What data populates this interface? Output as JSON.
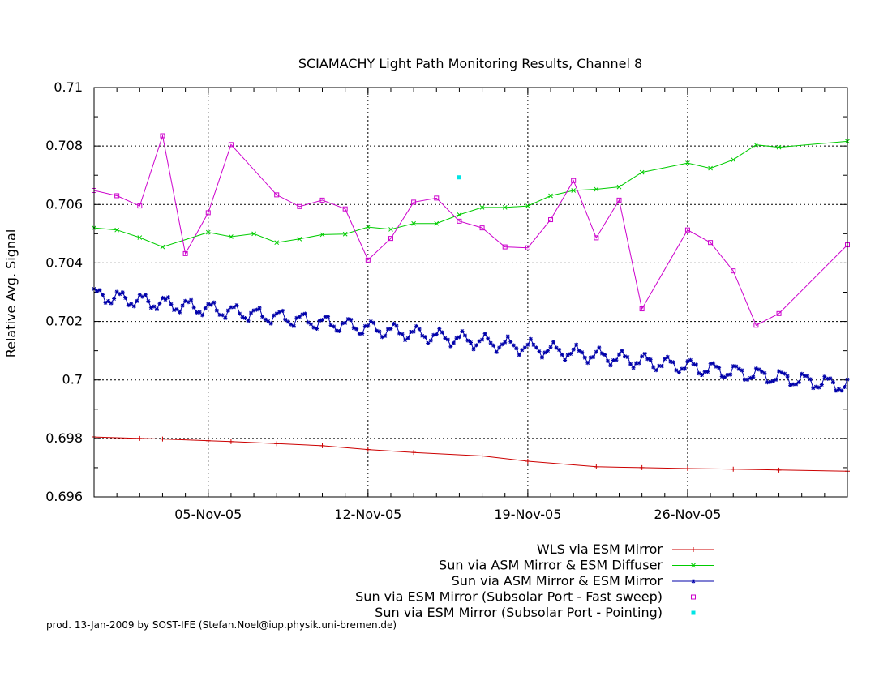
{
  "chart_data": {
    "type": "line",
    "title": "SCIAMACHY Light Path Monitoring Results, Channel 8",
    "xlabel": "",
    "ylabel": "Relative Avg. Signal",
    "x_axis": "date",
    "xlim": [
      "2005-10-31",
      "2005-12-03"
    ],
    "ylim": [
      0.696,
      0.71
    ],
    "y_ticks": [
      {
        "value": 0.696,
        "label": "0.696"
      },
      {
        "value": 0.698,
        "label": "0.698"
      },
      {
        "value": 0.7,
        "label": "0.7"
      },
      {
        "value": 0.702,
        "label": "0.702"
      },
      {
        "value": 0.704,
        "label": "0.704"
      },
      {
        "value": 0.706,
        "label": "0.706"
      },
      {
        "value": 0.708,
        "label": "0.708"
      },
      {
        "value": 0.71,
        "label": "0.71"
      }
    ],
    "x_ticks": [
      {
        "value": "2005-11-05",
        "label": "05-Nov-05"
      },
      {
        "value": "2005-11-12",
        "label": "12-Nov-05"
      },
      {
        "value": "2005-11-19",
        "label": "19-Nov-05"
      },
      {
        "value": "2005-11-26",
        "label": "26-Nov-05"
      }
    ],
    "grid": true,
    "legend_position": "below plot, right-aligned",
    "series": [
      {
        "name": "WLS via ESM Mirror",
        "color": "#cc0000",
        "marker": "plus",
        "points": [
          [
            "2005-10-31",
            0.69805
          ],
          [
            "2005-11-02",
            0.698
          ],
          [
            "2005-11-03",
            0.69798
          ],
          [
            "2005-11-05",
            0.69792
          ],
          [
            "2005-11-06",
            0.69789
          ],
          [
            "2005-11-08",
            0.69782
          ],
          [
            "2005-11-10",
            0.69775
          ],
          [
            "2005-11-12",
            0.69762
          ],
          [
            "2005-11-14",
            0.69752
          ],
          [
            "2005-11-17",
            0.6974
          ],
          [
            "2005-11-19",
            0.69722
          ],
          [
            "2005-11-22",
            0.69703
          ],
          [
            "2005-11-24",
            0.697
          ],
          [
            "2005-11-26",
            0.69697
          ],
          [
            "2005-11-28",
            0.69695
          ],
          [
            "2005-11-30",
            0.69692
          ],
          [
            "2005-12-03",
            0.69688
          ]
        ]
      },
      {
        "name": "Sun via ASM Mirror & ESM Diffuser",
        "color": "#00cc00",
        "marker": "cross",
        "points": [
          [
            "2005-10-31",
            0.7052
          ],
          [
            "2005-11-01",
            0.70513
          ],
          [
            "2005-11-02",
            0.70487
          ],
          [
            "2005-11-03",
            0.70455
          ],
          [
            "2005-11-05",
            0.70505
          ],
          [
            "2005-11-06",
            0.7049
          ],
          [
            "2005-11-07",
            0.705
          ],
          [
            "2005-11-08",
            0.7047
          ],
          [
            "2005-11-09",
            0.70482
          ],
          [
            "2005-11-10",
            0.70497
          ],
          [
            "2005-11-11",
            0.70499
          ],
          [
            "2005-11-12",
            0.70523
          ],
          [
            "2005-11-13",
            0.70515
          ],
          [
            "2005-11-14",
            0.70535
          ],
          [
            "2005-11-15",
            0.70535
          ],
          [
            "2005-11-16",
            0.70565
          ],
          [
            "2005-11-17",
            0.7059
          ],
          [
            "2005-11-18",
            0.7059
          ],
          [
            "2005-11-19",
            0.70595
          ],
          [
            "2005-11-20",
            0.7063
          ],
          [
            "2005-11-21",
            0.70648
          ],
          [
            "2005-11-22",
            0.70652
          ],
          [
            "2005-11-23",
            0.7066
          ],
          [
            "2005-11-24",
            0.7071
          ],
          [
            "2005-11-26",
            0.70742
          ],
          [
            "2005-11-27",
            0.70724
          ],
          [
            "2005-11-28",
            0.70753
          ],
          [
            "2005-11-29",
            0.70804
          ],
          [
            "2005-11-30",
            0.70796
          ],
          [
            "2005-12-03",
            0.70816
          ]
        ]
      },
      {
        "name": "Sun via ASM Mirror & ESM Mirror",
        "color": "#0000aa",
        "marker": "star",
        "trend": {
          "start": [
            "2005-10-31",
            0.7029
          ],
          "end": [
            "2005-12-03",
            0.6998
          ]
        },
        "oscillation": {
          "amplitude": 0.00022,
          "points_per_day": 8,
          "cycle_days": 1.0
        }
      },
      {
        "name": "Sun via ESM Mirror (Subsolar Port - Fast sweep)",
        "color": "#cc00cc",
        "marker": "square",
        "points": [
          [
            "2005-10-31",
            0.70648
          ],
          [
            "2005-11-01",
            0.7063
          ],
          [
            "2005-11-02",
            0.70595
          ],
          [
            "2005-11-03",
            0.70835
          ],
          [
            "2005-11-04",
            0.70432
          ],
          [
            "2005-11-05",
            0.70572
          ],
          [
            "2005-11-06",
            0.70805
          ],
          [
            "2005-11-08",
            0.70633
          ],
          [
            "2005-11-09",
            0.70593
          ],
          [
            "2005-11-10",
            0.70615
          ],
          [
            "2005-11-11",
            0.70585
          ],
          [
            "2005-11-12",
            0.7041
          ],
          [
            "2005-11-13",
            0.70484
          ],
          [
            "2005-11-14",
            0.70608
          ],
          [
            "2005-11-15",
            0.70622
          ],
          [
            "2005-11-16",
            0.70543
          ],
          [
            "2005-11-17",
            0.7052
          ],
          [
            "2005-11-18",
            0.70455
          ],
          [
            "2005-11-19",
            0.70452
          ],
          [
            "2005-11-20",
            0.70548
          ],
          [
            "2005-11-21",
            0.70682
          ],
          [
            "2005-11-22",
            0.70486
          ],
          [
            "2005-11-23",
            0.70615
          ],
          [
            "2005-11-24",
            0.70243
          ],
          [
            "2005-11-26",
            0.70513
          ],
          [
            "2005-11-27",
            0.7047
          ],
          [
            "2005-11-28",
            0.70373
          ],
          [
            "2005-11-29",
            0.70187
          ],
          [
            "2005-11-30",
            0.70227
          ],
          [
            "2005-12-03",
            0.70462
          ]
        ]
      },
      {
        "name": "Sun via ESM Mirror (Subsolar Port - Pointing)",
        "color": "#00e5e5",
        "marker": "dot",
        "points": [
          [
            "2005-11-16",
            0.70693
          ]
        ]
      }
    ]
  },
  "footer": {
    "credit": "prod. 13-Jan-2009 by SOST-IFE (Stefan.Noel@iup.physik.uni-bremen.de)"
  }
}
